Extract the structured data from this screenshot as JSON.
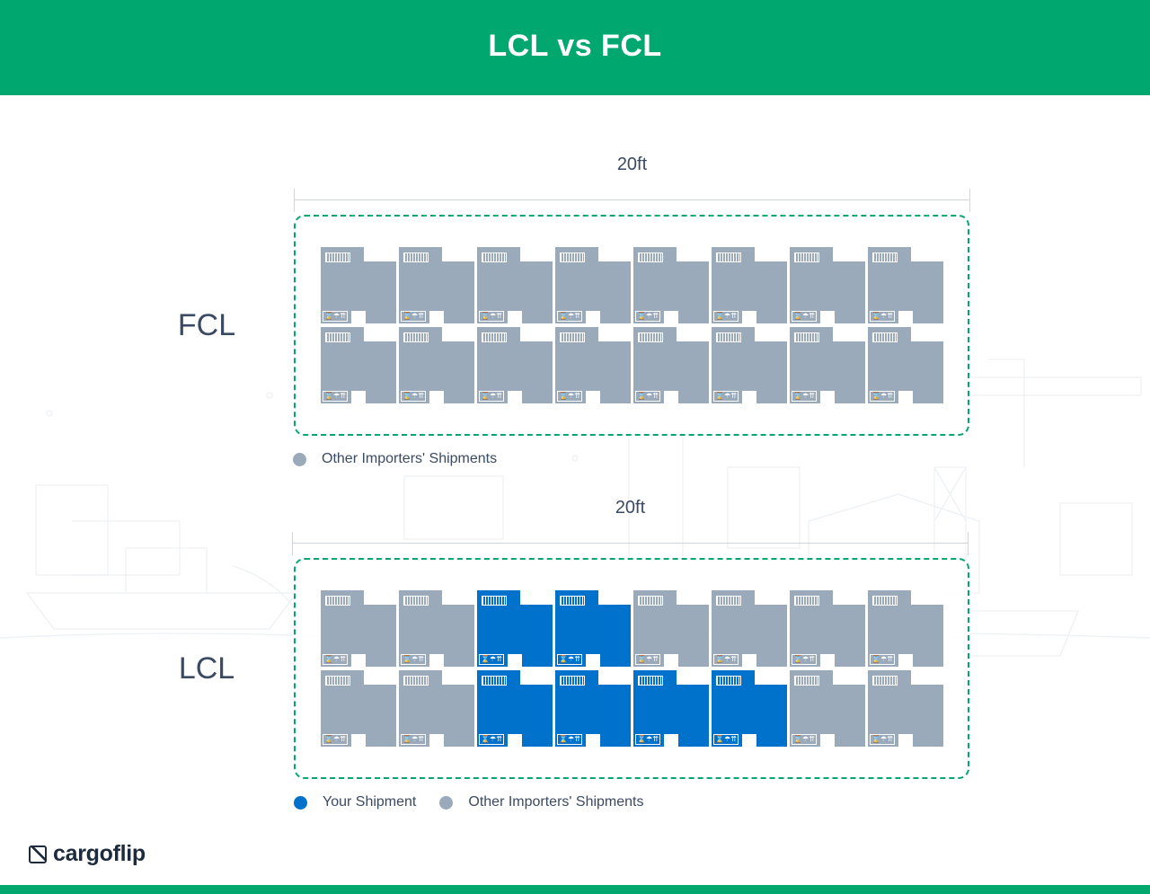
{
  "header": {
    "title": "LCL vs FCL"
  },
  "fcl": {
    "label": "FCL",
    "dimension": "20ft",
    "legend": [
      {
        "label": "Other Importers' Shipments",
        "color": "#9aaabb"
      }
    ],
    "rows": [
      [
        "other",
        "other",
        "other",
        "other",
        "other",
        "other",
        "other",
        "other"
      ],
      [
        "other",
        "other",
        "other",
        "other",
        "other",
        "other",
        "other",
        "other"
      ]
    ]
  },
  "lcl": {
    "label": "LCL",
    "dimension": "20ft",
    "legend": [
      {
        "label": "Your Shipment",
        "color": "#0072cc"
      },
      {
        "label": "Other Importers' Shipments",
        "color": "#9aaabb"
      }
    ],
    "rows": [
      [
        "other",
        "other",
        "mine",
        "mine",
        "other",
        "other",
        "other",
        "other"
      ],
      [
        "other",
        "other",
        "mine",
        "mine",
        "mine",
        "mine",
        "other",
        "other"
      ]
    ]
  },
  "box_icons": {
    "barcode": "barcode-icon",
    "symbols": "handling-symbols-icon",
    "symbols_text": "⌛☂⇈"
  },
  "logo": {
    "text": "cargoflip",
    "icon": "cargoflip-logo-icon"
  },
  "colors": {
    "brand": "#00a870",
    "yours": "#0072cc",
    "others": "#9aaabb"
  }
}
